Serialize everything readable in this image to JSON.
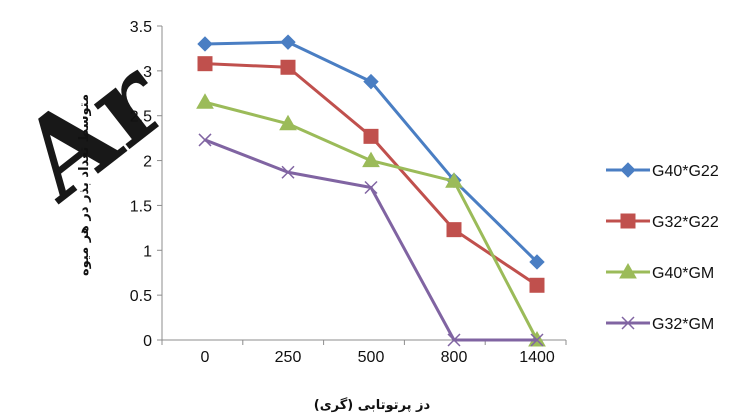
{
  "chart_data": {
    "type": "line",
    "categories": [
      "0",
      "250",
      "500",
      "800",
      "1400"
    ],
    "ylim": [
      0,
      3.5
    ],
    "yticks": [
      0,
      0.5,
      1,
      1.5,
      2,
      2.5,
      3,
      3.5
    ],
    "ytick_labels": [
      "0",
      "0.5",
      "1",
      "1.5",
      "2",
      "2.5",
      "3",
      "3.5"
    ],
    "xlabel": "دز پرتوتابی (گری)",
    "ylabel": "متوسط تعداد بذر در هر میوه",
    "grid": false,
    "legend_position": "right",
    "series": [
      {
        "name": "G40*G22",
        "values": [
          3.3,
          3.32,
          2.88,
          1.78,
          0.87
        ],
        "color": "#4a7ec3",
        "marker": "diamond"
      },
      {
        "name": "G32*G22",
        "values": [
          3.08,
          3.04,
          2.27,
          1.23,
          0.61
        ],
        "color": "#c0504d",
        "marker": "square"
      },
      {
        "name": "G40*GM",
        "values": [
          2.65,
          2.41,
          2.0,
          1.77,
          0.0
        ],
        "color": "#9bbb59",
        "marker": "triangle"
      },
      {
        "name": "G32*GM",
        "values": [
          2.23,
          1.87,
          1.7,
          0.0,
          0.0
        ],
        "color": "#8064a2",
        "marker": "x"
      }
    ]
  },
  "watermark": {
    "text": "Ar",
    "kind": "watermark"
  }
}
